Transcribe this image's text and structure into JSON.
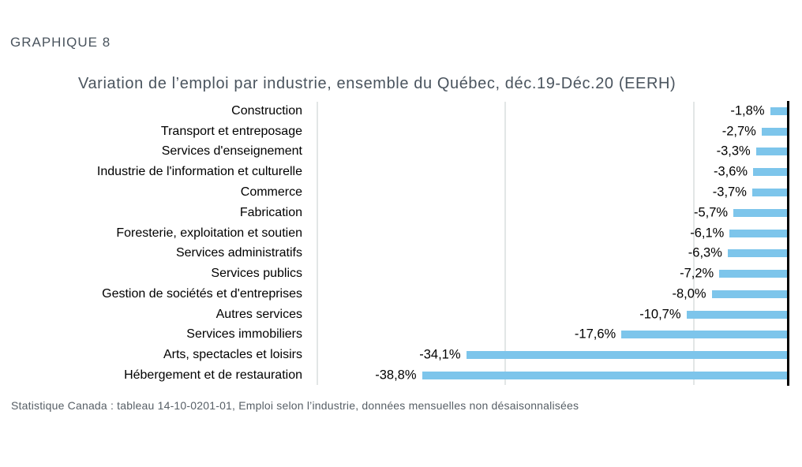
{
  "page": {
    "heading": "GRAPHIQUE 8",
    "source_note": "Statistique Canada : tableau 14-10-0201-01, Emploi selon l’industrie, données mensuelles non désaisonnalisées"
  },
  "chart_data": {
    "type": "bar",
    "orientation": "horizontal",
    "title": "Variation de l’emploi par industrie, ensemble du Québec, déc.19-Déc.20 (EERH)",
    "categories": [
      "Construction",
      "Transport et entreposage",
      "Services d'enseignement",
      "Industrie de l'information et culturelle",
      "Commerce",
      "Fabrication",
      "Foresterie, exploitation et soutien",
      "Services administratifs",
      "Services publics",
      "Gestion de sociétés et d'entreprises",
      "Autres services",
      "Services immobiliers",
      "Arts, spectacles et loisirs",
      "Hébergement et de restauration"
    ],
    "values": [
      -1.8,
      -2.7,
      -3.3,
      -3.6,
      -3.7,
      -5.7,
      -6.1,
      -6.3,
      -7.2,
      -8.0,
      -10.7,
      -17.6,
      -34.1,
      -38.8
    ],
    "value_labels": [
      "-1,8%",
      "-2,7%",
      "-3,3%",
      "-3,6%",
      "-3,7%",
      "-5,7%",
      "-6,1%",
      "-6,3%",
      "-7,2%",
      "-8,0%",
      "-10,7%",
      "-17,6%",
      "-34,1%",
      "-38,8%"
    ],
    "xlim": [
      -50,
      0
    ],
    "gridlines_at": [
      -50,
      -30,
      -10
    ],
    "legend": false,
    "grid": true,
    "bar_color": "#7DC5EB",
    "gridline_color": "#E2E6E6",
    "axis_color": "#000000"
  }
}
